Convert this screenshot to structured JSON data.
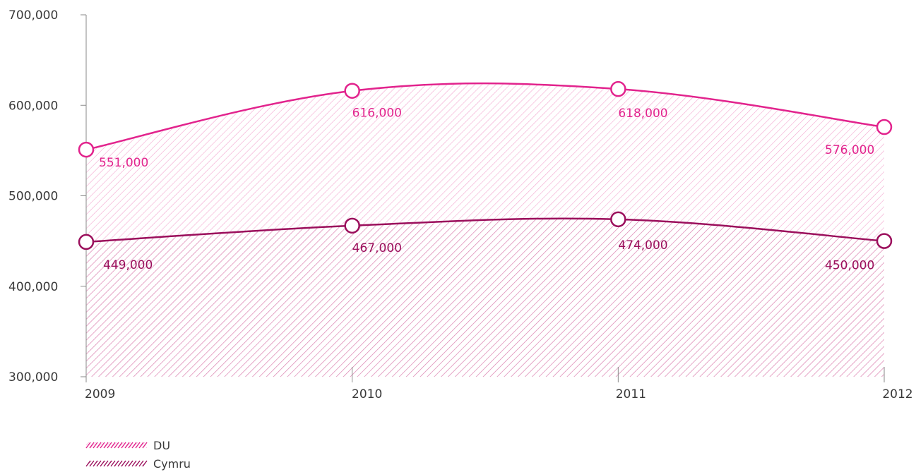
{
  "chart_data": {
    "type": "area",
    "categories": [
      "2009",
      "2010",
      "2011",
      "2012"
    ],
    "ylim": [
      300000,
      700000
    ],
    "y_ticks": [
      300000,
      400000,
      500000,
      600000,
      700000
    ],
    "y_tick_labels": [
      "300,000",
      "400,000",
      "500,000",
      "600,000",
      "700,000"
    ],
    "grid": false,
    "legend_position": "bottom-left",
    "series": [
      {
        "name": "DU",
        "values": [
          551000,
          616000,
          618000,
          576000
        ],
        "labels": [
          "551,000",
          "616,000",
          "618,000",
          "576,000"
        ],
        "color": "#e2238d"
      },
      {
        "name": "Cymru",
        "values": [
          449000,
          467000,
          474000,
          450000
        ],
        "labels": [
          "449,000",
          "467,000",
          "474,000",
          "450,000"
        ],
        "color": "#9b0f5c"
      }
    ]
  }
}
